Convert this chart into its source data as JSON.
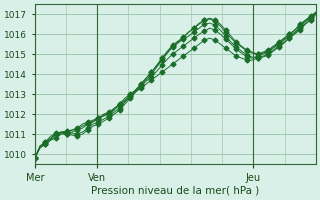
{
  "title": "",
  "xlabel": "Pression niveau de la mer( hPa )",
  "ylabel": "",
  "bg_color": "#d8f0e8",
  "grid_color": "#a0c8b0",
  "line_color": "#1a6e2a",
  "marker_color": "#1a6e2a",
  "ylim": [
    1009.5,
    1017.5
  ],
  "yticks": [
    1010,
    1011,
    1012,
    1013,
    1014,
    1015,
    1016,
    1017
  ],
  "day_labels": [
    "Mer",
    "Ven",
    "Jeu"
  ],
  "day_positions": [
    0,
    48,
    168
  ],
  "total_hours": 216,
  "series": [
    [
      1009.8,
      1010.4,
      1010.5,
      1010.7,
      1010.8,
      1011.0,
      1011.0,
      1011.1,
      1011.2,
      1011.3,
      1011.5,
      1011.6,
      1011.8,
      1011.9,
      1012.0,
      1012.2,
      1012.5,
      1012.8,
      1013.0,
      1013.2,
      1013.5,
      1013.8,
      1014.1,
      1014.4,
      1014.8,
      1015.1,
      1015.4,
      1015.6,
      1015.8,
      1016.1,
      1016.3,
      1016.5,
      1016.7,
      1016.8,
      1016.7,
      1016.5,
      1016.2,
      1015.9,
      1015.6,
      1015.4,
      1015.2,
      1015.1,
      1015.0,
      1015.1,
      1015.2,
      1015.4,
      1015.6,
      1015.8,
      1016.0,
      1016.2,
      1016.5,
      1016.7,
      1016.9,
      1017.1
    ],
    [
      1009.8,
      1010.4,
      1010.6,
      1010.9,
      1011.0,
      1011.1,
      1011.1,
      1011.2,
      1011.3,
      1011.5,
      1011.6,
      1011.7,
      1011.8,
      1012.0,
      1012.1,
      1012.3,
      1012.5,
      1012.7,
      1012.9,
      1013.1,
      1013.3,
      1013.5,
      1013.7,
      1013.9,
      1014.1,
      1014.3,
      1014.5,
      1014.7,
      1014.9,
      1015.1,
      1015.3,
      1015.5,
      1015.7,
      1015.8,
      1015.7,
      1015.5,
      1015.3,
      1015.1,
      1014.9,
      1014.8,
      1014.7,
      1014.7,
      1014.8,
      1014.9,
      1015.0,
      1015.2,
      1015.4,
      1015.6,
      1015.8,
      1016.0,
      1016.2,
      1016.5,
      1016.7,
      1017.0
    ],
    [
      1009.8,
      1010.4,
      1010.6,
      1010.8,
      1011.0,
      1011.1,
      1011.15,
      1011.2,
      1011.25,
      1011.4,
      1011.55,
      1011.65,
      1011.75,
      1011.95,
      1012.05,
      1012.25,
      1012.45,
      1012.65,
      1012.95,
      1013.15,
      1013.4,
      1013.65,
      1013.85,
      1014.15,
      1014.45,
      1014.75,
      1015.0,
      1015.2,
      1015.4,
      1015.6,
      1015.8,
      1016.0,
      1016.15,
      1016.3,
      1016.2,
      1016.0,
      1015.75,
      1015.5,
      1015.25,
      1015.05,
      1014.85,
      1014.8,
      1014.9,
      1015.0,
      1015.1,
      1015.3,
      1015.5,
      1015.7,
      1015.9,
      1016.1,
      1016.35,
      1016.6,
      1016.8,
      1017.05
    ],
    [
      1009.8,
      1010.35,
      1010.55,
      1010.75,
      1011.05,
      1011.1,
      1011.05,
      1011.05,
      1011.0,
      1011.1,
      1011.3,
      1011.5,
      1011.6,
      1011.75,
      1011.9,
      1012.1,
      1012.3,
      1012.6,
      1012.9,
      1013.2,
      1013.5,
      1013.8,
      1014.1,
      1014.45,
      1014.8,
      1015.15,
      1015.45,
      1015.65,
      1015.85,
      1016.1,
      1016.3,
      1016.55,
      1016.7,
      1016.75,
      1016.65,
      1016.4,
      1016.1,
      1015.8,
      1015.55,
      1015.35,
      1015.15,
      1015.05,
      1015.0,
      1015.05,
      1015.15,
      1015.35,
      1015.55,
      1015.75,
      1016.0,
      1016.2,
      1016.45,
      1016.65,
      1016.85,
      1017.1
    ],
    [
      1009.8,
      1010.3,
      1010.5,
      1010.7,
      1011.0,
      1011.05,
      1011.0,
      1010.95,
      1010.9,
      1011.0,
      1011.2,
      1011.4,
      1011.5,
      1011.65,
      1011.8,
      1012.0,
      1012.2,
      1012.5,
      1012.8,
      1013.1,
      1013.4,
      1013.7,
      1014.0,
      1014.35,
      1014.7,
      1015.05,
      1015.35,
      1015.55,
      1015.75,
      1015.9,
      1016.1,
      1016.3,
      1016.5,
      1016.55,
      1016.45,
      1016.2,
      1015.9,
      1015.6,
      1015.35,
      1015.15,
      1014.95,
      1014.85,
      1014.8,
      1014.85,
      1014.95,
      1015.15,
      1015.35,
      1015.55,
      1015.8,
      1016.05,
      1016.3,
      1016.5,
      1016.7,
      1017.0
    ]
  ]
}
